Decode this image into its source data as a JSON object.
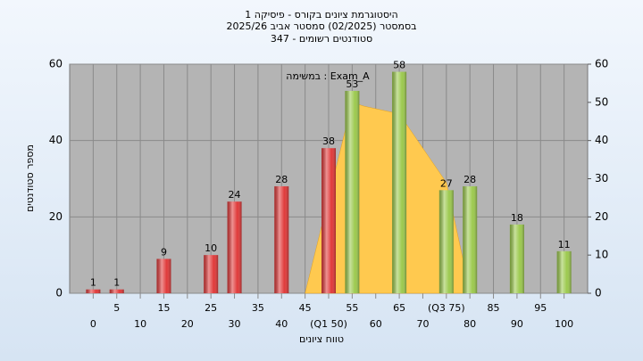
{
  "chart_data": {
    "type": "bar",
    "title": "היסטוגרמת ציונים בקורס - פיסיקה 1",
    "subtitle": "בסמסטר  (02/2025)  סמסטר אביב 2025/26",
    "subtitle2": "סטודנטים רשומים - 347",
    "annotation": "במשימה : Exam_A",
    "x_label": "טווח ציונים",
    "y_label": "מספר סטודנטים",
    "series": [
      {
        "color": "#e03a3a",
        "x": [
          0,
          5,
          15,
          25,
          30,
          40,
          50
        ],
        "values": [
          1,
          1,
          9,
          10,
          24,
          28,
          38
        ]
      },
      {
        "color": "#9cc94e",
        "x": [
          55,
          65,
          75,
          80,
          90,
          100
        ],
        "values": [
          53,
          58,
          27,
          28,
          18,
          11
        ]
      }
    ],
    "area": {
      "color": "#ffc94f",
      "x": [
        45,
        55,
        57.5,
        65,
        75,
        78.5
      ],
      "values": [
        0,
        50,
        49,
        47,
        29,
        9
      ]
    },
    "xlim": [
      -5,
      105
    ],
    "xticks": [
      0,
      5,
      10,
      15,
      20,
      25,
      30,
      35,
      40,
      45,
      {
        "value": 50,
        "label": "(Q1 50)"
      },
      55,
      60,
      65,
      70,
      {
        "value": 75,
        "label": "(Q3 75)"
      },
      80,
      85,
      90,
      95,
      100
    ],
    "ylim": [
      0,
      60
    ],
    "yticks": [
      0,
      20,
      40,
      60
    ],
    "y2lim": [
      0,
      60
    ],
    "y2ticks": [
      0,
      10,
      20,
      30,
      40,
      50,
      60
    ],
    "grid": true
  }
}
